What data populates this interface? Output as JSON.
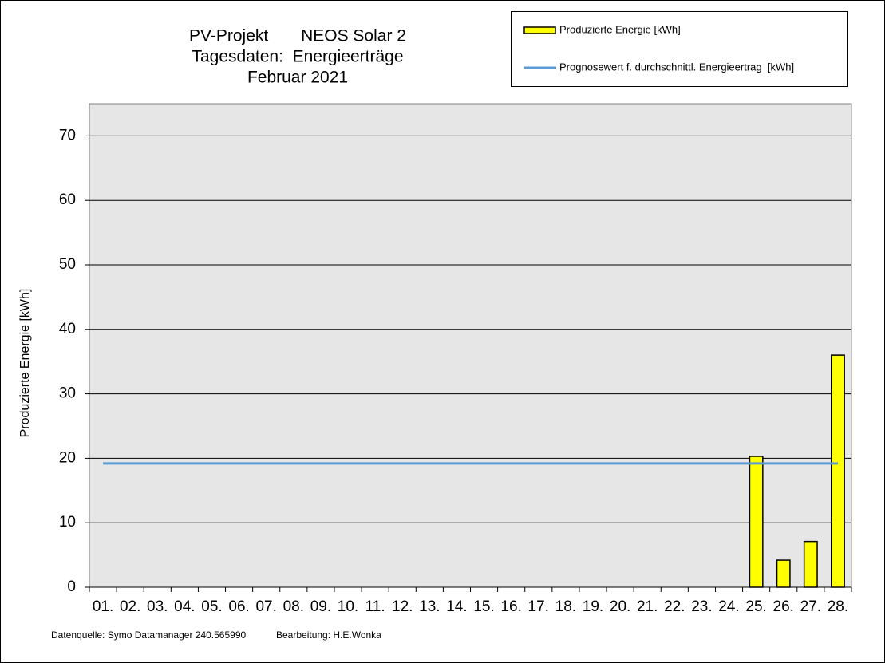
{
  "chart_data": {
    "type": "bar",
    "title": [
      "PV-Projekt       NEOS Solar 2",
      "Tagesdaten:  Energieerträge",
      "Februar 2021"
    ],
    "y_label": "Produzierte Energie [kWh]",
    "categories": [
      "01.",
      "02.",
      "03.",
      "04.",
      "05.",
      "06.",
      "07.",
      "08.",
      "09.",
      "10.",
      "11.",
      "12.",
      "13.",
      "14.",
      "15.",
      "16.",
      "17.",
      "18.",
      "19.",
      "20.",
      "21.",
      "22.",
      "23.",
      "24.",
      "25.",
      "26.",
      "27.",
      "28."
    ],
    "series": [
      {
        "name": "Produzierte Energie [kWh]",
        "type": "bar",
        "color": "#ffff00",
        "values": [
          null,
          null,
          null,
          null,
          null,
          null,
          null,
          null,
          null,
          null,
          null,
          null,
          null,
          null,
          null,
          null,
          null,
          null,
          null,
          null,
          null,
          null,
          null,
          null,
          20.3,
          4.2,
          7.1,
          36
        ]
      },
      {
        "name": "Prognosewert f. durchschnittl. Energieertrag  [kWh]",
        "type": "line",
        "color": "#5b9bd5",
        "values": [
          19.2,
          19.2,
          19.2,
          19.2,
          19.2,
          19.2,
          19.2,
          19.2,
          19.2,
          19.2,
          19.2,
          19.2,
          19.2,
          19.2,
          19.2,
          19.2,
          19.2,
          19.2,
          19.2,
          19.2,
          19.2,
          19.2,
          19.2,
          19.2,
          19.2,
          19.2,
          19.2,
          19.2
        ]
      }
    ],
    "ylim": [
      0,
      75
    ],
    "yticks": [
      0,
      10,
      20,
      30,
      40,
      50,
      60,
      70
    ],
    "grid": true,
    "footer": [
      "Datenquelle: Symo Datamanager 240.565990",
      "Bearbeitung: H.E.Wonka"
    ]
  }
}
